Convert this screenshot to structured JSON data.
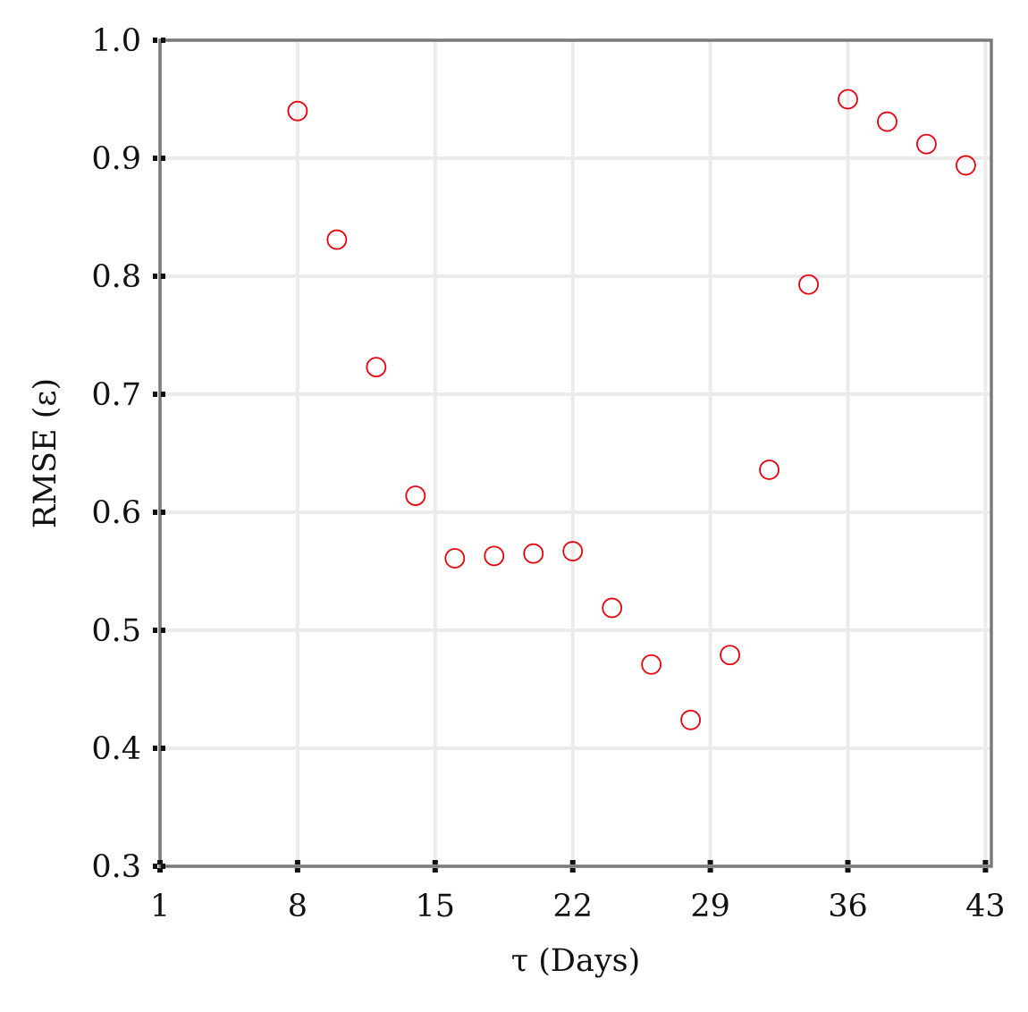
{
  "chart_data": {
    "type": "scatter",
    "title": "",
    "xlabel": "τ (Days)",
    "ylabel": "RMSE (ε)",
    "xlim": [
      1,
      43.3
    ],
    "ylim": [
      0.3,
      1.0
    ],
    "x_ticks": [
      1,
      8,
      15,
      22,
      29,
      36,
      43
    ],
    "x_tick_labels": [
      "1",
      "8",
      "15",
      "22",
      "29",
      "36",
      "43"
    ],
    "y_ticks": [
      0.3,
      0.4,
      0.5,
      0.6,
      0.7,
      0.8,
      0.9,
      1.0
    ],
    "y_tick_labels": [
      "0.3",
      "0.4",
      "0.5",
      "0.6",
      "0.7",
      "0.8",
      "0.9",
      "1.0"
    ],
    "grid": true,
    "legend": "none",
    "marker": "open-circle",
    "marker_color": "#e8000b",
    "grid_color": "#ebebeb",
    "frame_color": "#7a7a7a",
    "tick_color": "#111111",
    "series": [
      {
        "x": [
          8,
          10,
          12,
          14,
          16,
          18,
          20,
          22,
          24,
          26,
          28,
          30,
          32,
          34,
          36,
          38,
          40,
          42
        ],
        "y": [
          0.94,
          0.831,
          0.723,
          0.614,
          0.561,
          0.563,
          0.565,
          0.567,
          0.519,
          0.471,
          0.424,
          0.479,
          0.636,
          0.793,
          0.95,
          0.931,
          0.912,
          0.894
        ]
      }
    ]
  }
}
